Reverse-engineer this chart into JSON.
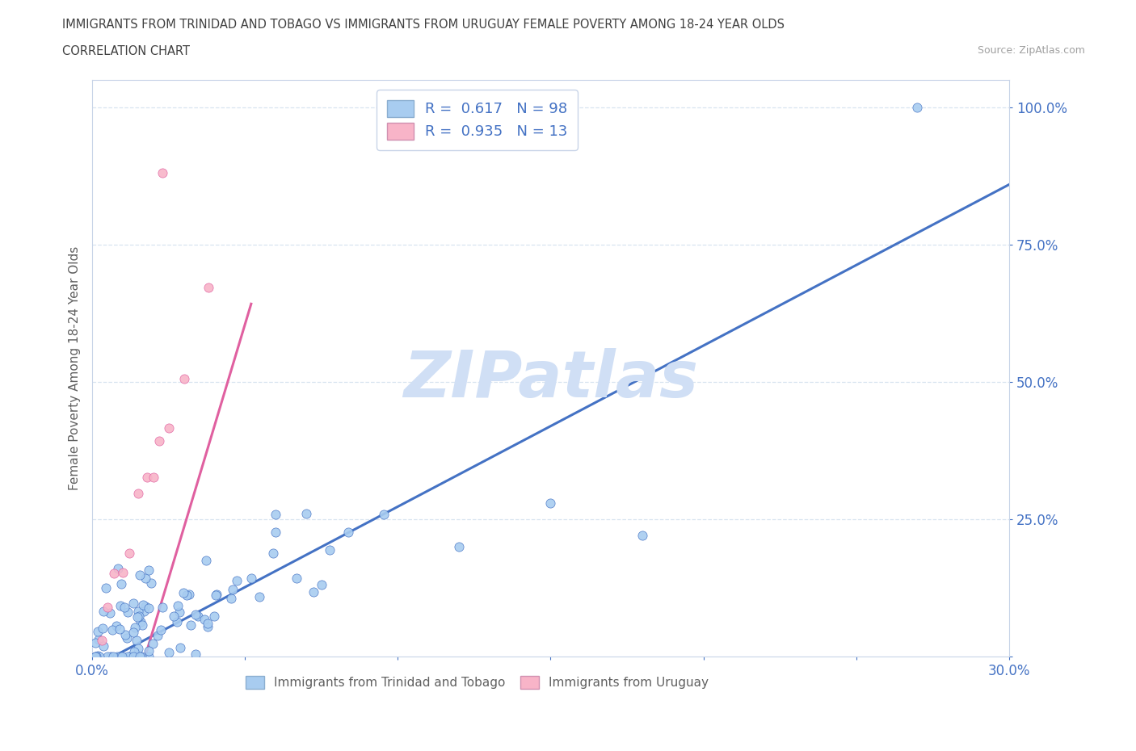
{
  "title_line1": "IMMIGRANTS FROM TRINIDAD AND TOBAGO VS IMMIGRANTS FROM URUGUAY FEMALE POVERTY AMONG 18-24 YEAR OLDS",
  "title_line2": "CORRELATION CHART",
  "source_text": "Source: ZipAtlas.com",
  "ylabel": "Female Poverty Among 18-24 Year Olds",
  "xlim": [
    0.0,
    0.3
  ],
  "ylim": [
    0.0,
    1.05
  ],
  "xticks": [
    0.0,
    0.05,
    0.1,
    0.15,
    0.2,
    0.25,
    0.3
  ],
  "xticklabels": [
    "0.0%",
    "",
    "",
    "",
    "",
    "",
    "30.0%"
  ],
  "ytick_positions": [
    0.0,
    0.25,
    0.5,
    0.75,
    1.0
  ],
  "ytick_labels": [
    "",
    "25.0%",
    "50.0%",
    "75.0%",
    "100.0%"
  ],
  "color_blue": "#A8CCF0",
  "color_pink": "#F8B4C8",
  "trendline_blue": "#4472C4",
  "trendline_pink": "#E060A0",
  "R_blue": 0.617,
  "N_blue": 98,
  "R_pink": 0.935,
  "N_pink": 13,
  "watermark": "ZIPatlas",
  "watermark_color": "#D0DFF5",
  "legend_label_blue": "Immigrants from Trinidad and Tobago",
  "legend_label_pink": "Immigrants from Uruguay",
  "background_color": "#FFFFFF",
  "title_color": "#404040",
  "axis_label_color": "#606060",
  "tick_color": "#4472C4",
  "grid_color": "#D8E4F0",
  "blue_trend_slope": 2.9,
  "blue_trend_intercept": 0.0,
  "pink_trend_slope": 18.0,
  "pink_trend_intercept": -0.02
}
